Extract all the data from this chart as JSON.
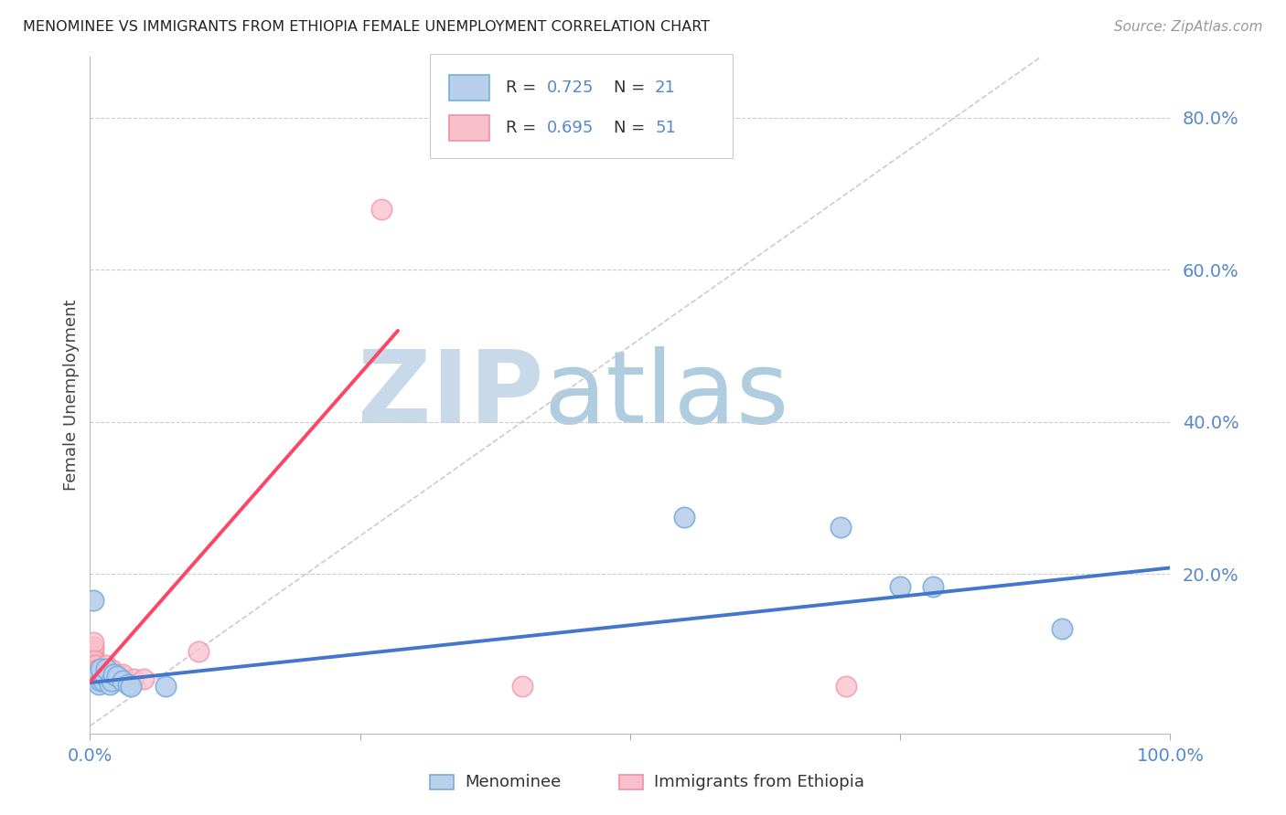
{
  "title": "MENOMINEE VS IMMIGRANTS FROM ETHIOPIA FEMALE UNEMPLOYMENT CORRELATION CHART",
  "source": "Source: ZipAtlas.com",
  "ylabel": "Female Unemployment",
  "ytick_labels": [
    "80.0%",
    "60.0%",
    "40.0%",
    "20.0%"
  ],
  "ytick_values": [
    0.8,
    0.6,
    0.4,
    0.2
  ],
  "xlim": [
    0.0,
    1.0
  ],
  "ylim": [
    -0.01,
    0.88
  ],
  "background_color": "#ffffff",
  "watermark_zip": "ZIP",
  "watermark_atlas": "atlas",
  "watermark_color_zip": "#c5d8ec",
  "watermark_color_atlas": "#a8c4dc",
  "blue_color": "#6699cc",
  "pink_color": "#ff99aa",
  "blue_line_color": "#4477cc",
  "pink_line_color": "#ff4466",
  "blue_scatter": [
    [
      0.003,
      0.165
    ],
    [
      0.005,
      0.065
    ],
    [
      0.008,
      0.055
    ],
    [
      0.01,
      0.06
    ],
    [
      0.01,
      0.075
    ],
    [
      0.012,
      0.06
    ],
    [
      0.014,
      0.065
    ],
    [
      0.015,
      0.075
    ],
    [
      0.018,
      0.055
    ],
    [
      0.02,
      0.06
    ],
    [
      0.022,
      0.068
    ],
    [
      0.025,
      0.065
    ],
    [
      0.03,
      0.06
    ],
    [
      0.035,
      0.055
    ],
    [
      0.038,
      0.052
    ],
    [
      0.07,
      0.052
    ],
    [
      0.55,
      0.275
    ],
    [
      0.695,
      0.262
    ],
    [
      0.75,
      0.183
    ],
    [
      0.78,
      0.183
    ],
    [
      0.9,
      0.128
    ]
  ],
  "pink_scatter": [
    [
      0.003,
      0.062
    ],
    [
      0.003,
      0.068
    ],
    [
      0.003,
      0.074
    ],
    [
      0.003,
      0.08
    ],
    [
      0.003,
      0.086
    ],
    [
      0.003,
      0.092
    ],
    [
      0.003,
      0.098
    ],
    [
      0.003,
      0.104
    ],
    [
      0.003,
      0.11
    ],
    [
      0.004,
      0.062
    ],
    [
      0.004,
      0.068
    ],
    [
      0.004,
      0.074
    ],
    [
      0.004,
      0.08
    ],
    [
      0.004,
      0.086
    ],
    [
      0.005,
      0.062
    ],
    [
      0.005,
      0.068
    ],
    [
      0.005,
      0.074
    ],
    [
      0.005,
      0.08
    ],
    [
      0.006,
      0.062
    ],
    [
      0.006,
      0.068
    ],
    [
      0.006,
      0.074
    ],
    [
      0.007,
      0.062
    ],
    [
      0.007,
      0.068
    ],
    [
      0.008,
      0.062
    ],
    [
      0.008,
      0.068
    ],
    [
      0.008,
      0.074
    ],
    [
      0.009,
      0.062
    ],
    [
      0.01,
      0.062
    ],
    [
      0.01,
      0.068
    ],
    [
      0.01,
      0.074
    ],
    [
      0.012,
      0.062
    ],
    [
      0.012,
      0.068
    ],
    [
      0.015,
      0.062
    ],
    [
      0.015,
      0.068
    ],
    [
      0.015,
      0.074
    ],
    [
      0.015,
      0.08
    ],
    [
      0.018,
      0.062
    ],
    [
      0.018,
      0.068
    ],
    [
      0.02,
      0.062
    ],
    [
      0.02,
      0.068
    ],
    [
      0.02,
      0.074
    ],
    [
      0.025,
      0.062
    ],
    [
      0.025,
      0.068
    ],
    [
      0.03,
      0.062
    ],
    [
      0.03,
      0.068
    ],
    [
      0.04,
      0.062
    ],
    [
      0.05,
      0.062
    ],
    [
      0.27,
      0.68
    ],
    [
      0.4,
      0.052
    ],
    [
      0.7,
      0.052
    ],
    [
      0.1,
      0.098
    ]
  ],
  "blue_trendline_x": [
    0.0,
    1.0
  ],
  "blue_trendline_y": [
    0.057,
    0.208
  ],
  "pink_trendline_x": [
    0.0,
    0.285
  ],
  "pink_trendline_y": [
    0.058,
    0.52
  ],
  "diagonal_line_x": [
    0.0,
    0.88
  ],
  "diagonal_line_y": [
    0.0,
    0.88
  ],
  "grid_color": "#cccccc",
  "grid_style": "--",
  "tick_color": "#5588cc",
  "xtick_positions": [
    0.0,
    0.25,
    0.5,
    0.75,
    1.0
  ],
  "xtick_labels": [
    "0.0%",
    "",
    "",
    "",
    "100.0%"
  ]
}
